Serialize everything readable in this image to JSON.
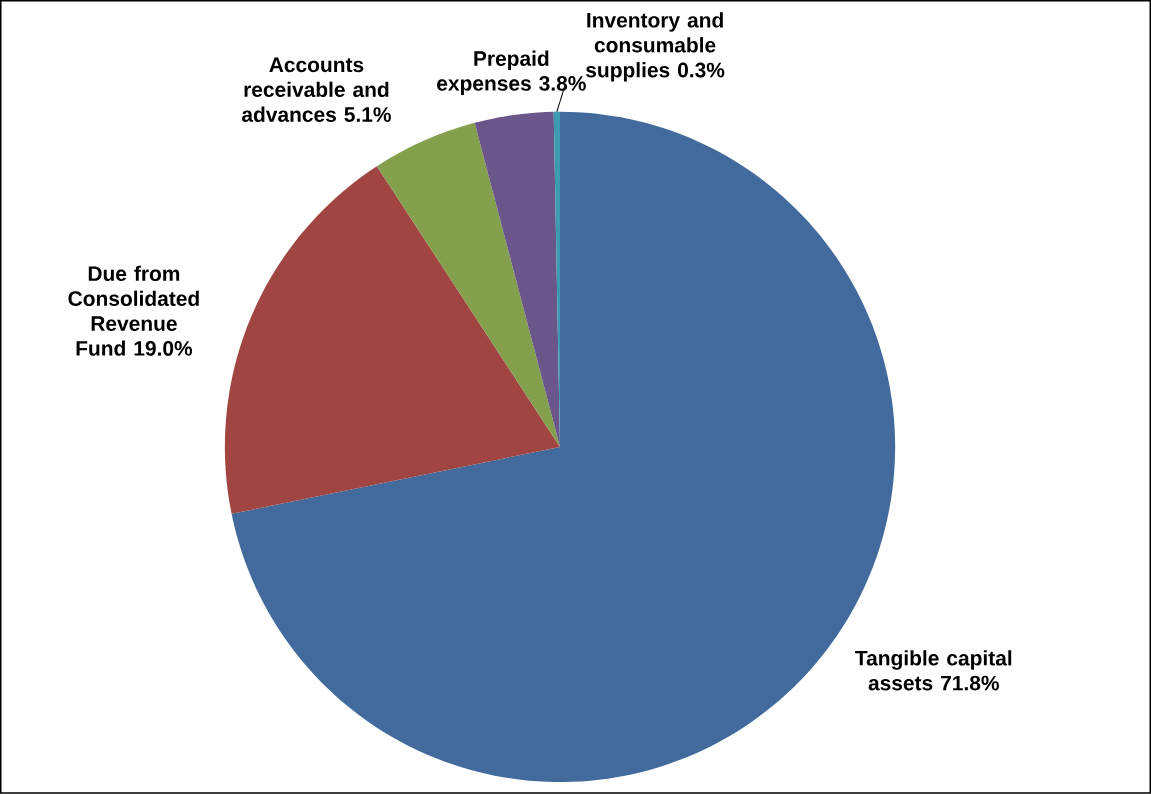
{
  "chart_data": {
    "type": "pie",
    "categories": [
      "Tangible capital assets",
      "Due from Consolidated Revenue Fund",
      "Accounts receivable and advances",
      "Prepaid expenses",
      "Inventory and consumable supplies"
    ],
    "values": [
      71.8,
      19.0,
      5.1,
      3.8,
      0.3
    ],
    "value_labels": [
      "71.8%",
      "19.0%",
      "5.1%",
      "3.8%",
      "0.3%"
    ],
    "colors": [
      "#426a9c",
      "#a04542",
      "#84a04d",
      "#6b568c",
      "#3c9bb0"
    ]
  }
}
